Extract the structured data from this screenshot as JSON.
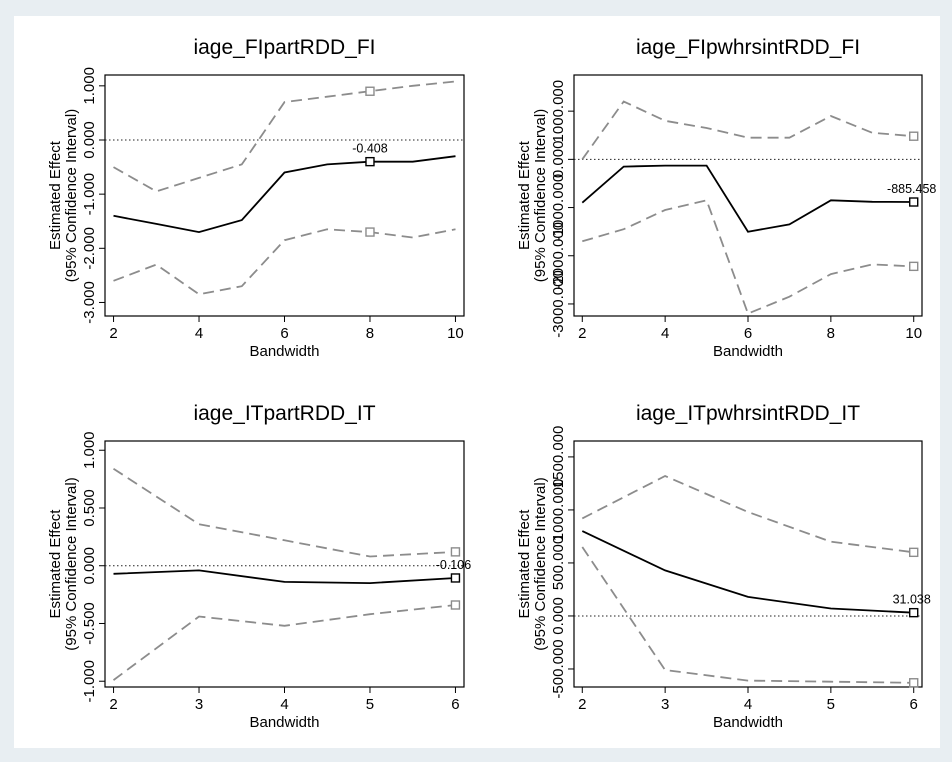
{
  "chart_data": [
    {
      "type": "line",
      "title": "iage_FIpartRDD_FI",
      "xlabel": "Bandwidth",
      "ylabel": [
        "Estimated Effect",
        "(95% Confidence Interval)"
      ],
      "xlim": [
        1.8,
        10.2
      ],
      "ylim": [
        -3.25,
        1.2
      ],
      "xticks": [
        2,
        4,
        6,
        8,
        10
      ],
      "yticks": [
        {
          "value": -3,
          "label": "-3.000"
        },
        {
          "value": -2,
          "label": "-2.000"
        },
        {
          "value": -1,
          "label": "-1.000"
        },
        {
          "value": 0,
          "label": "0.000"
        },
        {
          "value": 1,
          "label": "1.000"
        }
      ],
      "reference_line": 0,
      "x": [
        2,
        3,
        4,
        5,
        6,
        7,
        8,
        9,
        10
      ],
      "series": [
        {
          "role": "estimate",
          "values": [
            -1.4,
            -1.55,
            -1.7,
            -1.48,
            -0.6,
            -0.45,
            -0.4,
            -0.4,
            -0.3
          ]
        },
        {
          "role": "upper",
          "values": [
            -0.5,
            -0.95,
            -0.7,
            -0.45,
            0.7,
            0.8,
            0.9,
            1.0,
            1.08
          ]
        },
        {
          "role": "lower",
          "values": [
            -2.6,
            -2.3,
            -2.85,
            -2.7,
            -1.85,
            -1.65,
            -1.7,
            -1.8,
            -1.65
          ]
        }
      ],
      "marker_x": 8,
      "marker_label": "-0.408"
    },
    {
      "type": "line",
      "title": "iage_FIpwhrsintRDD_FI",
      "xlabel": "Bandwidth",
      "ylabel": [
        "Estimated Effect",
        "(95% Confidence Interval)"
      ],
      "xlim": [
        1.8,
        10.2
      ],
      "ylim": [
        -3250,
        1750
      ],
      "xticks": [
        2,
        4,
        6,
        8,
        10
      ],
      "yticks": [
        {
          "value": -3000,
          "label": "-3000.000"
        },
        {
          "value": -2000,
          "label": "-2000.000"
        },
        {
          "value": -1000,
          "label": "-1000.000"
        },
        {
          "value": 0,
          "label": "0.000"
        },
        {
          "value": 1000,
          "label": "1000.000"
        }
      ],
      "reference_line": 0,
      "x": [
        2,
        3,
        4,
        5,
        6,
        7,
        8,
        9,
        10
      ],
      "series": [
        {
          "role": "estimate",
          "values": [
            -900,
            -150,
            -130,
            -130,
            -1500,
            -1350,
            -850,
            -880,
            -885
          ]
        },
        {
          "role": "upper",
          "values": [
            0,
            1200,
            800,
            650,
            450,
            450,
            900,
            550,
            480
          ]
        },
        {
          "role": "lower",
          "values": [
            -1700,
            -1450,
            -1050,
            -850,
            -3200,
            -2850,
            -2380,
            -2180,
            -2220
          ]
        }
      ],
      "marker_x": 10,
      "marker_label": "-885.458"
    },
    {
      "type": "line",
      "title": "iage_ITpartRDD_IT",
      "xlabel": "Bandwidth",
      "ylabel": [
        "Estimated Effect",
        "(95% Confidence Interval)"
      ],
      "xlim": [
        1.9,
        6.1
      ],
      "ylim": [
        -1.05,
        1.08
      ],
      "xticks": [
        2,
        3,
        4,
        5,
        6
      ],
      "yticks": [
        {
          "value": -1,
          "label": "-1.000"
        },
        {
          "value": -0.5,
          "label": "-0.500"
        },
        {
          "value": 0,
          "label": "0.000"
        },
        {
          "value": 0.5,
          "label": "0.500"
        },
        {
          "value": 1,
          "label": "1.000"
        }
      ],
      "reference_line": 0,
      "x": [
        2,
        3,
        4,
        5,
        6
      ],
      "series": [
        {
          "role": "estimate",
          "values": [
            -0.07,
            -0.04,
            -0.14,
            -0.15,
            -0.106
          ]
        },
        {
          "role": "upper",
          "values": [
            0.84,
            0.36,
            0.22,
            0.08,
            0.12
          ]
        },
        {
          "role": "lower",
          "values": [
            -0.99,
            -0.44,
            -0.52,
            -0.42,
            -0.34
          ]
        }
      ],
      "marker_x": 6,
      "marker_label": "-0.106"
    },
    {
      "type": "line",
      "title": "iage_ITpwhrsintRDD_IT",
      "xlabel": "Bandwidth",
      "ylabel": [
        "Estimated Effect",
        "(95% Confidence Interval)"
      ],
      "xlim": [
        1.9,
        6.1
      ],
      "ylim": [
        -670,
        1650
      ],
      "xticks": [
        2,
        3,
        4,
        5,
        6
      ],
      "yticks": [
        {
          "value": -500,
          "label": "-500.000"
        },
        {
          "value": 0,
          "label": "0.000"
        },
        {
          "value": 500,
          "label": "500.000"
        },
        {
          "value": 1000,
          "label": "1000.000"
        },
        {
          "value": 1500,
          "label": "1500.000"
        }
      ],
      "reference_line": 0,
      "x": [
        2,
        3,
        4,
        5,
        6
      ],
      "series": [
        {
          "role": "estimate",
          "values": [
            800,
            430,
            180,
            70,
            31.038
          ]
        },
        {
          "role": "upper",
          "values": [
            920,
            1320,
            980,
            700,
            600
          ]
        },
        {
          "role": "lower",
          "values": [
            650,
            -510,
            -610,
            -620,
            -630
          ]
        }
      ],
      "marker_x": 6,
      "marker_label": "31.038"
    }
  ],
  "colors": {
    "estimate": "#000000",
    "ci": "#8c8c8c",
    "reference": "#222222",
    "frame": "#000000",
    "figure_background": "#ffffff",
    "page_background": "#e8eef2"
  }
}
